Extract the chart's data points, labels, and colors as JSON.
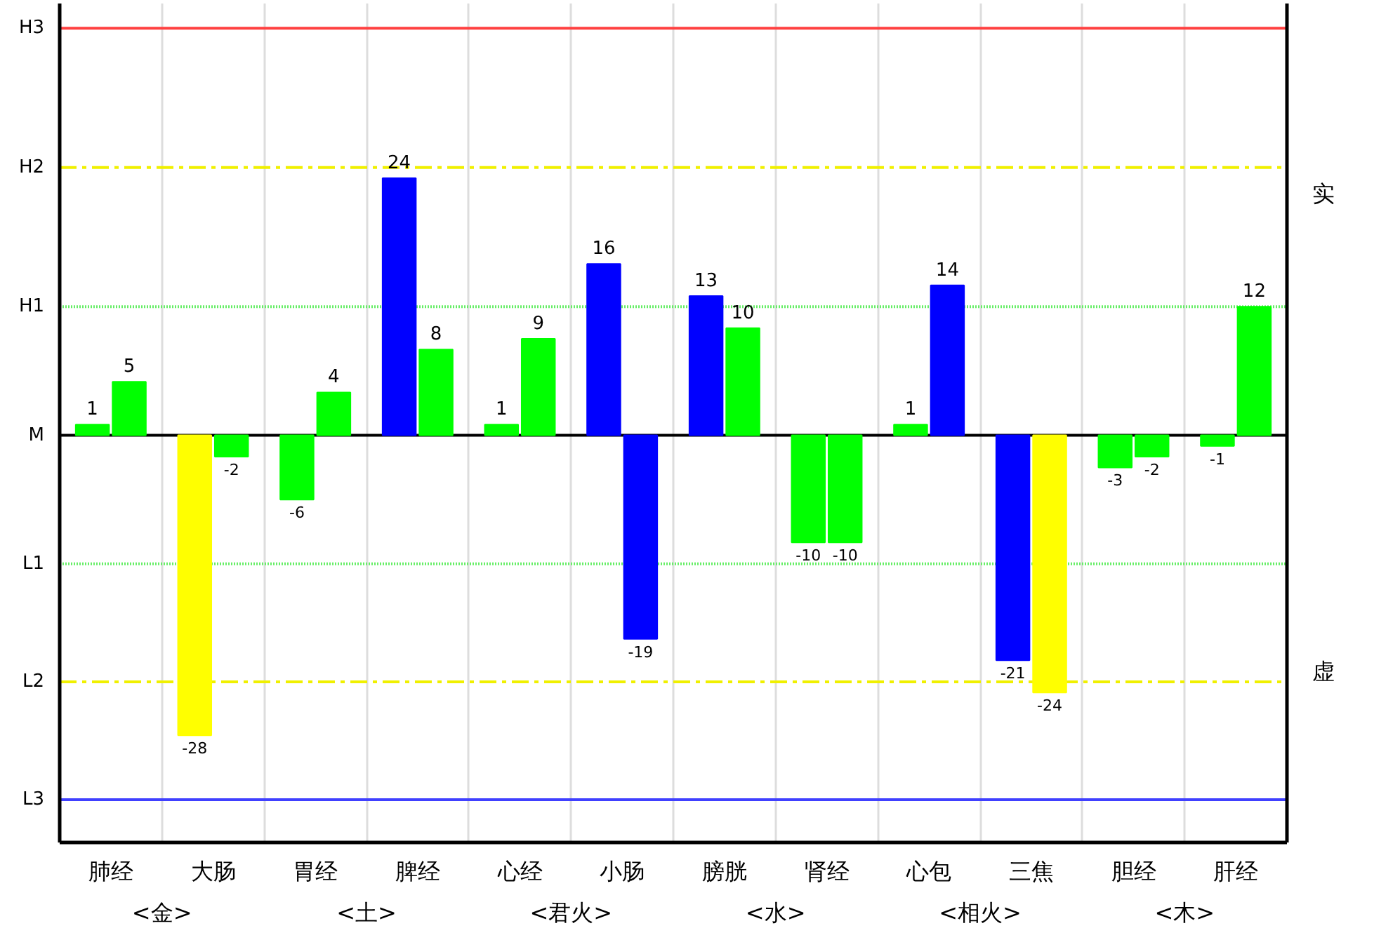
{
  "chart_data": {
    "type": "bar",
    "categories": [
      "肺经",
      "大肠",
      "胃经",
      "脾经",
      "心经",
      "小肠",
      "膀胱",
      "肾经",
      "心包",
      "三焦",
      "胆经",
      "肝经"
    ],
    "series": [
      {
        "values": [
          1,
          -28,
          -6,
          24,
          1,
          16,
          13,
          -10,
          1,
          -21,
          -3,
          -1
        ],
        "colors": [
          "#00ff00",
          "#ffff00",
          "#00ff00",
          "#0000ff",
          "#00ff00",
          "#0000ff",
          "#0000ff",
          "#00ff00",
          "#00ff00",
          "#0000ff",
          "#00ff00",
          "#00ff00"
        ]
      },
      {
        "values": [
          5,
          -2,
          4,
          8,
          9,
          -19,
          10,
          -10,
          14,
          -24,
          -2,
          12
        ],
        "colors": [
          "#00ff00",
          "#00ff00",
          "#00ff00",
          "#00ff00",
          "#00ff00",
          "#0000ff",
          "#00ff00",
          "#00ff00",
          "#0000ff",
          "#ffff00",
          "#00ff00",
          "#00ff00"
        ]
      }
    ],
    "ylim": [
      -38,
      40.3
    ],
    "ref_lines": [
      {
        "axis": "y",
        "value": 38,
        "label": "H3",
        "color": "#ff4040",
        "line_style": "solid"
      },
      {
        "axis": "y",
        "value": 25,
        "label": "H2",
        "color": "#f0f000",
        "line_style": "dashdot"
      },
      {
        "axis": "y",
        "value": 12,
        "label": "H1",
        "color": "#66ee66",
        "line_style": "dotted"
      },
      {
        "axis": "y",
        "value": 0,
        "label": "M",
        "color": "#000000",
        "line_style": "solid"
      },
      {
        "axis": "y",
        "value": -12,
        "label": "L1",
        "color": "#66ee66",
        "line_style": "dotted"
      },
      {
        "axis": "y",
        "value": -23,
        "label": "L2",
        "color": "#f0f000",
        "line_style": "dashdot"
      },
      {
        "axis": "y",
        "value": -34,
        "label": "L3",
        "color": "#4040ff",
        "line_style": "solid"
      }
    ],
    "grid": "x",
    "data_labels": true,
    "annotations": [
      "实",
      "虚",
      "<金>",
      "<土>",
      "<君火>",
      "<水>",
      "<相火>",
      "<木>"
    ]
  }
}
